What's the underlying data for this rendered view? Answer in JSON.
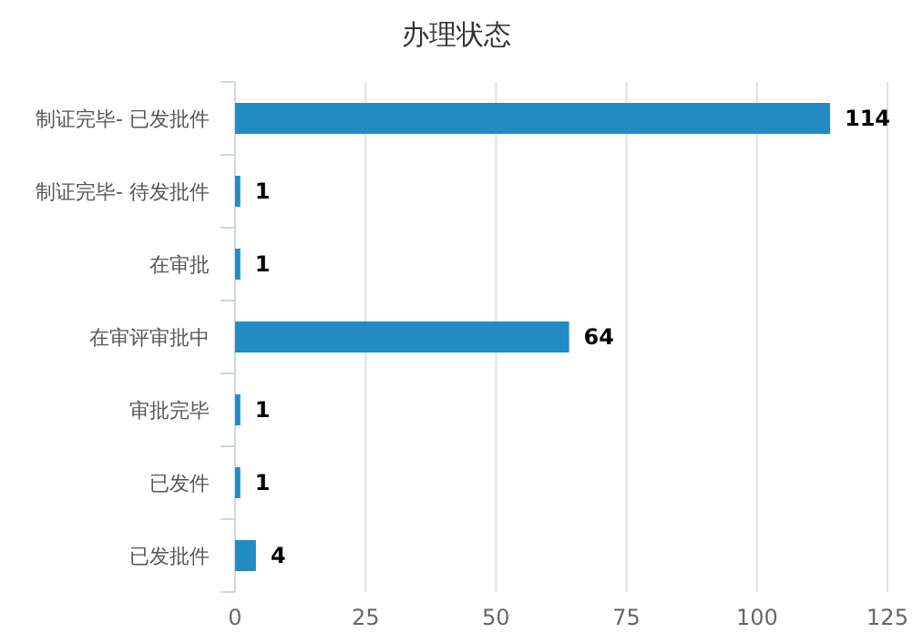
{
  "chart_data": {
    "type": "bar",
    "orientation": "horizontal",
    "title": "办理状态",
    "categories": [
      "制证完毕- 已发批件",
      "制证完毕- 待发批件",
      "在审批",
      "在审评审批中",
      "审批完毕",
      "已发件",
      "已发批件"
    ],
    "values": [
      114,
      1,
      1,
      64,
      1,
      1,
      4
    ],
    "color": "#228bc2",
    "xlim": [
      0,
      125
    ],
    "xticks": [
      0,
      25,
      50,
      75,
      100,
      125
    ],
    "grid": "x",
    "data_labels": true
  }
}
